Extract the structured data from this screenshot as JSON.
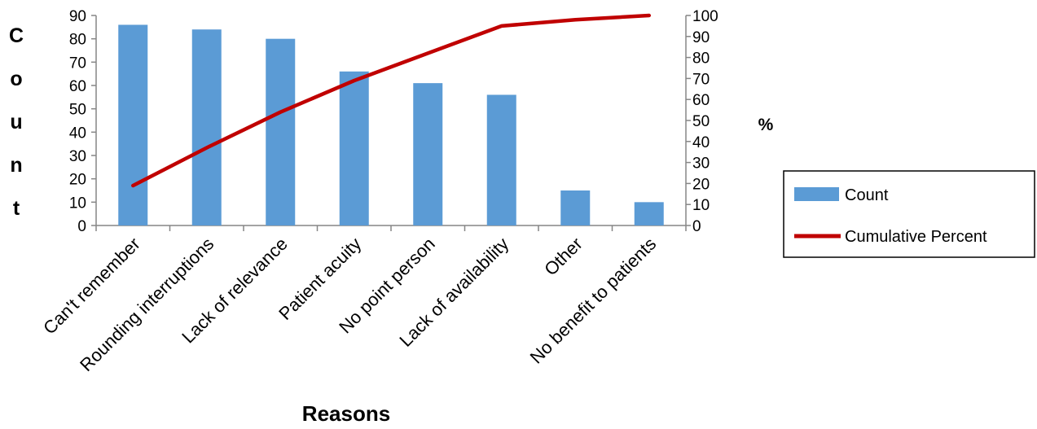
{
  "chart_data": {
    "type": "bar",
    "categories": [
      "Can't remember",
      "Rounding interruptions",
      "Lack of relevance",
      "Patient acuity",
      "No point person",
      "Lack of availability",
      "Other",
      "No benefit to patients"
    ],
    "series": [
      {
        "name": "Count",
        "type": "bar",
        "axis": "left",
        "values": [
          86,
          84,
          80,
          66,
          61,
          56,
          15,
          10
        ]
      },
      {
        "name": "Cumulative Percent",
        "type": "line",
        "axis": "right",
        "values": [
          19,
          37,
          54,
          69,
          82,
          95,
          98,
          100
        ]
      }
    ],
    "xlabel": "Reasons",
    "ylabel": "Count",
    "y2label": "%",
    "ylim": [
      0,
      90
    ],
    "y2lim": [
      0,
      100
    ],
    "yticks": [
      0,
      10,
      20,
      30,
      40,
      50,
      60,
      70,
      80,
      90
    ],
    "y2ticks": [
      0,
      10,
      20,
      30,
      40,
      50,
      60,
      70,
      80,
      90,
      100
    ],
    "legend_position": "right",
    "colors": {
      "bar": "#5B9BD5",
      "line": "#C00000",
      "axis": "#868686"
    }
  }
}
